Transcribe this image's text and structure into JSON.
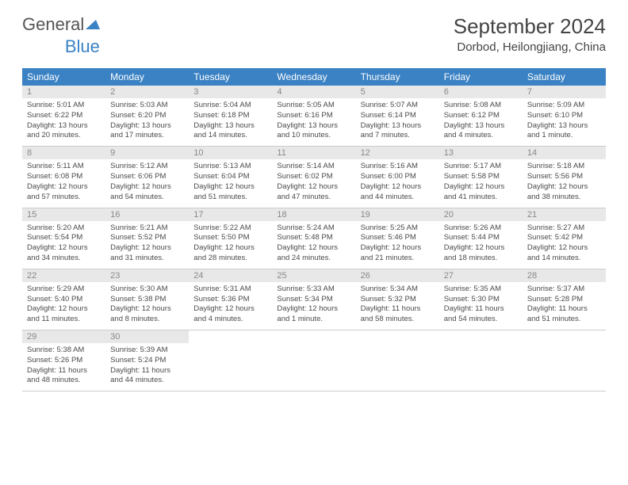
{
  "brand": {
    "part1": "General",
    "part2": "Blue"
  },
  "title": "September 2024",
  "location": "Dorbod, Heilongjiang, China",
  "colors": {
    "header_bg": "#3b82c4",
    "header_text": "#ffffff",
    "daynum_bg": "#e8e8e8",
    "daynum_text": "#888888",
    "border": "#cccccc",
    "body_text": "#4a4a4a"
  },
  "weekdays": [
    "Sunday",
    "Monday",
    "Tuesday",
    "Wednesday",
    "Thursday",
    "Friday",
    "Saturday"
  ],
  "labels": {
    "sunrise": "Sunrise:",
    "sunset": "Sunset:",
    "daylight": "Daylight:"
  },
  "days": [
    {
      "n": 1,
      "sunrise": "5:01 AM",
      "sunset": "6:22 PM",
      "daylight": "13 hours and 20 minutes."
    },
    {
      "n": 2,
      "sunrise": "5:03 AM",
      "sunset": "6:20 PM",
      "daylight": "13 hours and 17 minutes."
    },
    {
      "n": 3,
      "sunrise": "5:04 AM",
      "sunset": "6:18 PM",
      "daylight": "13 hours and 14 minutes."
    },
    {
      "n": 4,
      "sunrise": "5:05 AM",
      "sunset": "6:16 PM",
      "daylight": "13 hours and 10 minutes."
    },
    {
      "n": 5,
      "sunrise": "5:07 AM",
      "sunset": "6:14 PM",
      "daylight": "13 hours and 7 minutes."
    },
    {
      "n": 6,
      "sunrise": "5:08 AM",
      "sunset": "6:12 PM",
      "daylight": "13 hours and 4 minutes."
    },
    {
      "n": 7,
      "sunrise": "5:09 AM",
      "sunset": "6:10 PM",
      "daylight": "13 hours and 1 minute."
    },
    {
      "n": 8,
      "sunrise": "5:11 AM",
      "sunset": "6:08 PM",
      "daylight": "12 hours and 57 minutes."
    },
    {
      "n": 9,
      "sunrise": "5:12 AM",
      "sunset": "6:06 PM",
      "daylight": "12 hours and 54 minutes."
    },
    {
      "n": 10,
      "sunrise": "5:13 AM",
      "sunset": "6:04 PM",
      "daylight": "12 hours and 51 minutes."
    },
    {
      "n": 11,
      "sunrise": "5:14 AM",
      "sunset": "6:02 PM",
      "daylight": "12 hours and 47 minutes."
    },
    {
      "n": 12,
      "sunrise": "5:16 AM",
      "sunset": "6:00 PM",
      "daylight": "12 hours and 44 minutes."
    },
    {
      "n": 13,
      "sunrise": "5:17 AM",
      "sunset": "5:58 PM",
      "daylight": "12 hours and 41 minutes."
    },
    {
      "n": 14,
      "sunrise": "5:18 AM",
      "sunset": "5:56 PM",
      "daylight": "12 hours and 38 minutes."
    },
    {
      "n": 15,
      "sunrise": "5:20 AM",
      "sunset": "5:54 PM",
      "daylight": "12 hours and 34 minutes."
    },
    {
      "n": 16,
      "sunrise": "5:21 AM",
      "sunset": "5:52 PM",
      "daylight": "12 hours and 31 minutes."
    },
    {
      "n": 17,
      "sunrise": "5:22 AM",
      "sunset": "5:50 PM",
      "daylight": "12 hours and 28 minutes."
    },
    {
      "n": 18,
      "sunrise": "5:24 AM",
      "sunset": "5:48 PM",
      "daylight": "12 hours and 24 minutes."
    },
    {
      "n": 19,
      "sunrise": "5:25 AM",
      "sunset": "5:46 PM",
      "daylight": "12 hours and 21 minutes."
    },
    {
      "n": 20,
      "sunrise": "5:26 AM",
      "sunset": "5:44 PM",
      "daylight": "12 hours and 18 minutes."
    },
    {
      "n": 21,
      "sunrise": "5:27 AM",
      "sunset": "5:42 PM",
      "daylight": "12 hours and 14 minutes."
    },
    {
      "n": 22,
      "sunrise": "5:29 AM",
      "sunset": "5:40 PM",
      "daylight": "12 hours and 11 minutes."
    },
    {
      "n": 23,
      "sunrise": "5:30 AM",
      "sunset": "5:38 PM",
      "daylight": "12 hours and 8 minutes."
    },
    {
      "n": 24,
      "sunrise": "5:31 AM",
      "sunset": "5:36 PM",
      "daylight": "12 hours and 4 minutes."
    },
    {
      "n": 25,
      "sunrise": "5:33 AM",
      "sunset": "5:34 PM",
      "daylight": "12 hours and 1 minute."
    },
    {
      "n": 26,
      "sunrise": "5:34 AM",
      "sunset": "5:32 PM",
      "daylight": "11 hours and 58 minutes."
    },
    {
      "n": 27,
      "sunrise": "5:35 AM",
      "sunset": "5:30 PM",
      "daylight": "11 hours and 54 minutes."
    },
    {
      "n": 28,
      "sunrise": "5:37 AM",
      "sunset": "5:28 PM",
      "daylight": "11 hours and 51 minutes."
    },
    {
      "n": 29,
      "sunrise": "5:38 AM",
      "sunset": "5:26 PM",
      "daylight": "11 hours and 48 minutes."
    },
    {
      "n": 30,
      "sunrise": "5:39 AM",
      "sunset": "5:24 PM",
      "daylight": "11 hours and 44 minutes."
    }
  ]
}
